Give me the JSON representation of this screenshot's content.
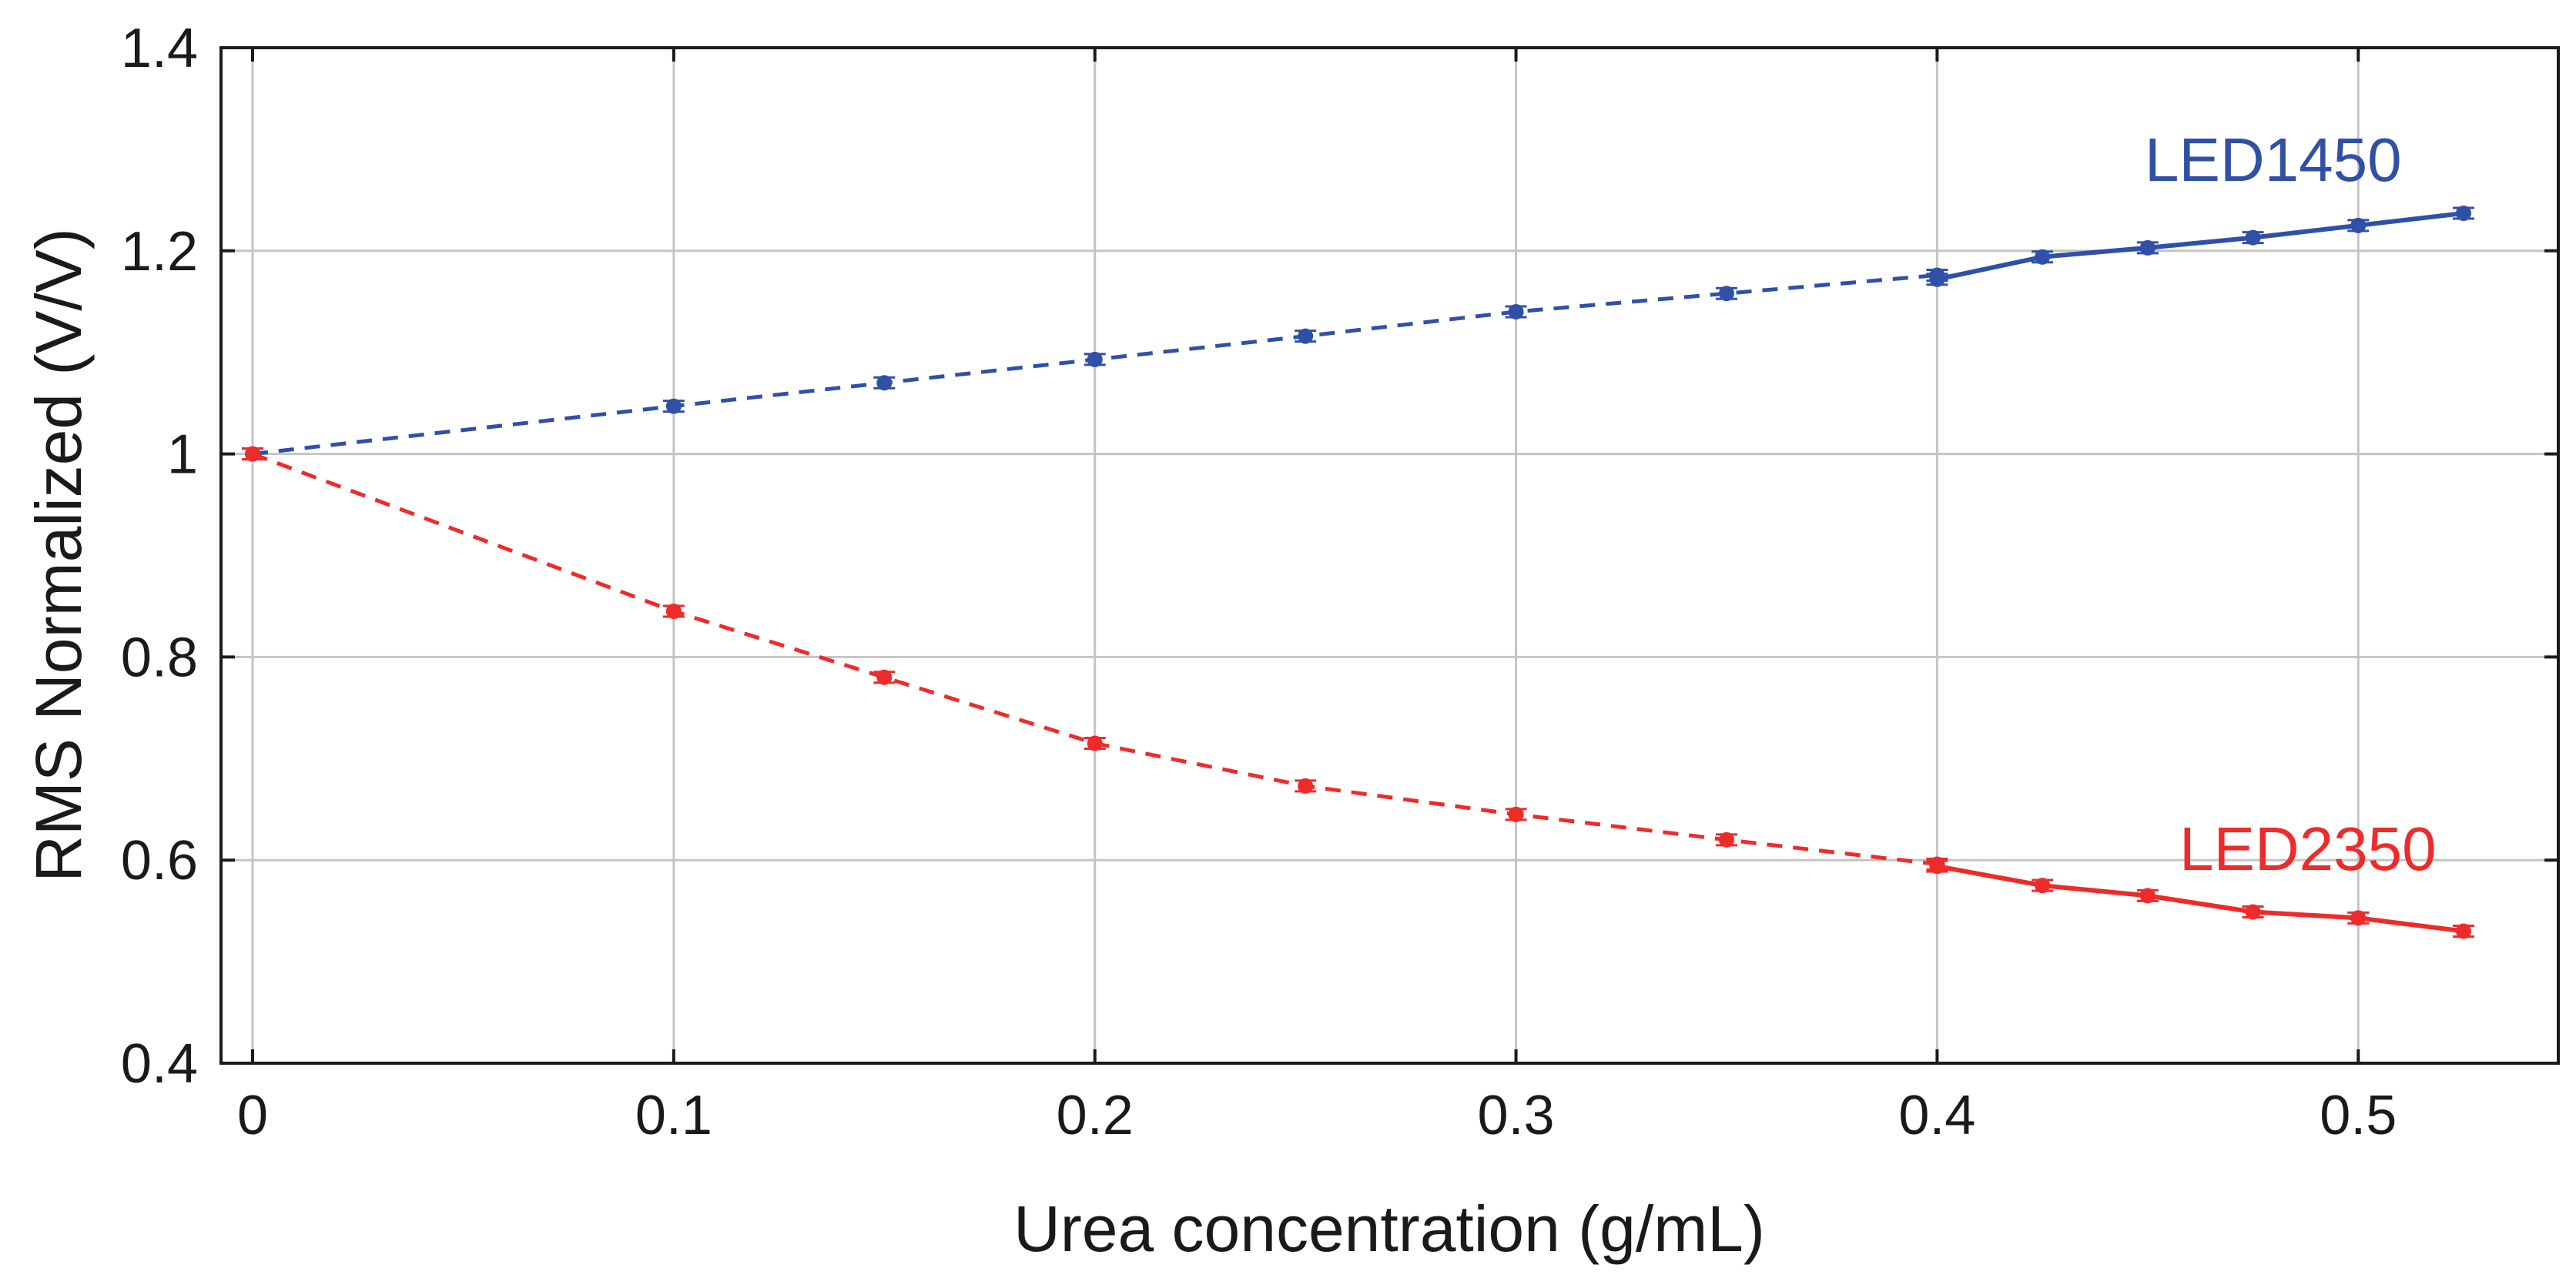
{
  "chart_data": {
    "type": "line",
    "title": "",
    "xlabel": "Urea concentration (g/mL)",
    "ylabel": "RMS Normalized (V/V)",
    "xlim": [
      -0.0075,
      0.5475
    ],
    "ylim": [
      0.4,
      1.4
    ],
    "xticks": [
      0,
      0.1,
      0.2,
      0.3,
      0.4,
      0.5
    ],
    "xtick_labels": [
      "0",
      "0.1",
      "0.2",
      "0.3",
      "0.4",
      "0.5"
    ],
    "yticks": [
      0.4,
      0.6,
      0.8,
      1.0,
      1.2,
      1.4
    ],
    "ytick_labels": [
      "0.4",
      "0.6",
      "0.8",
      "1",
      "1.2",
      "1.4"
    ],
    "grid": true,
    "series": [
      {
        "name": "LED1450",
        "label": "LED1450",
        "color": "#3050a8",
        "marker": "circle",
        "dashed": {
          "x": [
            0,
            0.1,
            0.15,
            0.2,
            0.25,
            0.3,
            0.35,
            0.4
          ],
          "y": [
            1.0,
            1.047,
            1.07,
            1.093,
            1.116,
            1.14,
            1.158,
            1.176
          ]
        },
        "solid": {
          "x": [
            0.4,
            0.425,
            0.45,
            0.475,
            0.5,
            0.525
          ],
          "y": [
            1.172,
            1.194,
            1.203,
            1.213,
            1.225,
            1.237
          ]
        }
      },
      {
        "name": "LED2350",
        "label": "LED2350",
        "color": "#ee2b2b",
        "marker": "circle",
        "dashed": {
          "x": [
            0,
            0.1,
            0.15,
            0.2,
            0.25,
            0.3,
            0.35,
            0.4
          ],
          "y": [
            1.0,
            0.845,
            0.78,
            0.715,
            0.673,
            0.645,
            0.62,
            0.596
          ]
        },
        "solid": {
          "x": [
            0.4,
            0.425,
            0.45,
            0.475,
            0.5,
            0.525
          ],
          "y": [
            0.594,
            0.575,
            0.565,
            0.549,
            0.543,
            0.53
          ]
        }
      }
    ]
  }
}
